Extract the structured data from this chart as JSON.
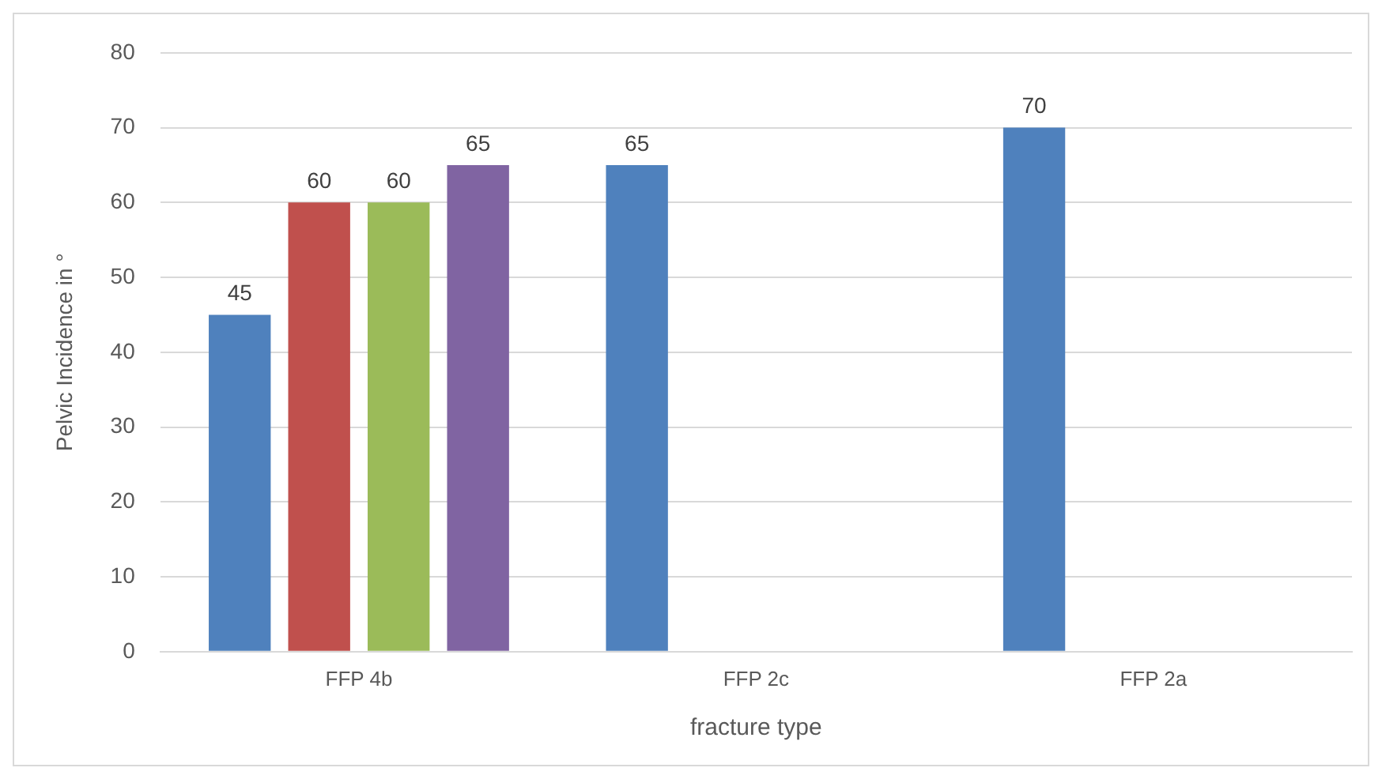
{
  "chart_data": {
    "type": "bar",
    "xlabel": "fracture type",
    "ylabel": "Pelvic Incidence in °",
    "categories": [
      "FFP 4b",
      "FFP 2c",
      "FFP 2a"
    ],
    "series": [
      {
        "color": "#4f81bd",
        "values": [
          45,
          65,
          70
        ]
      },
      {
        "color": "#c0504d",
        "values": [
          60,
          null,
          null
        ]
      },
      {
        "color": "#9bbb59",
        "values": [
          60,
          null,
          null
        ]
      },
      {
        "color": "#8064a2",
        "values": [
          65,
          null,
          null
        ]
      }
    ],
    "ylim": [
      0,
      80
    ],
    "yticks": [
      0,
      10,
      20,
      30,
      40,
      50,
      60,
      70,
      80
    ],
    "grid": "y",
    "data_labels": true,
    "legend": false
  }
}
